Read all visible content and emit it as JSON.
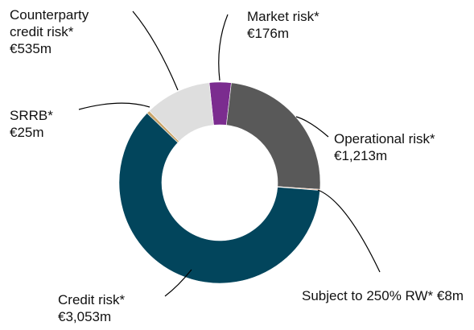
{
  "chart_data": {
    "type": "donut",
    "categories": [
      "Market risk*",
      "Operational risk*",
      "Subject to 250% RW*",
      "Credit risk*",
      "SRRB*",
      "Counterparty credit risk*"
    ],
    "values": [
      176,
      1213,
      8,
      3053,
      25,
      535
    ],
    "value_labels": [
      "€176m",
      "€1,213m",
      "€8m",
      "€3,053m",
      "€25m",
      "€535m"
    ],
    "colors": [
      "#7b2c8f",
      "#595959",
      "#e8a77e",
      "#02455c",
      "#c9a46a",
      "#dedede"
    ]
  }
}
